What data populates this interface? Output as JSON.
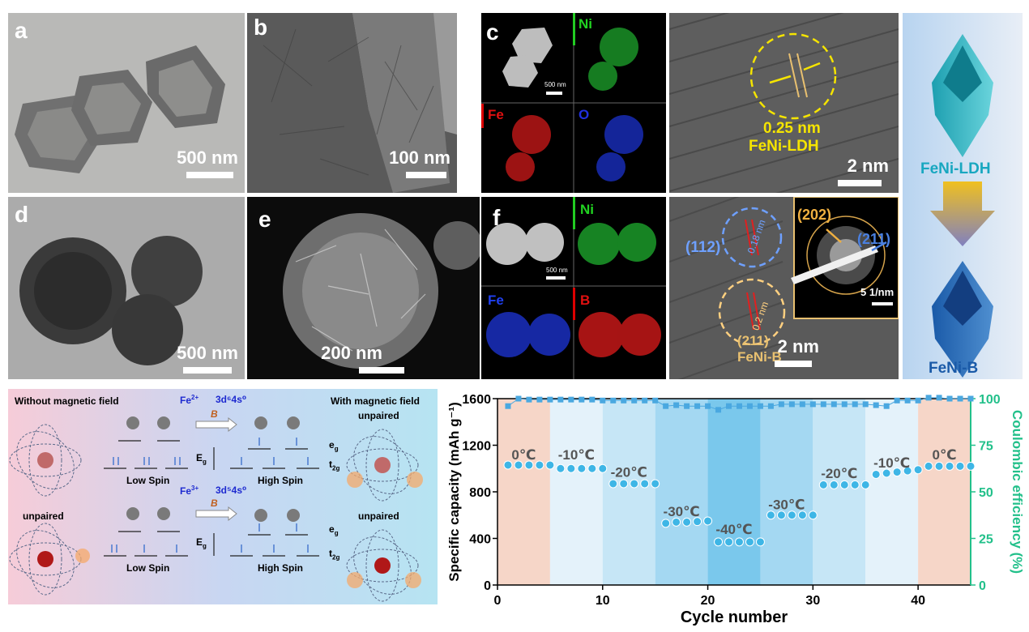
{
  "panels": {
    "a": {
      "label": "a",
      "scale": "500 nm"
    },
    "b": {
      "label": "b",
      "scale": "100 nm"
    },
    "c": {
      "label": "c",
      "scale": "500 nm",
      "maps": [
        "Ni",
        "Fe",
        "O"
      ]
    },
    "c_hrtem": {
      "spacing": "0.25 nm",
      "phase": "FeNi-LDH",
      "scale": "2 nm"
    },
    "d": {
      "label": "d",
      "scale": "500 nm"
    },
    "e": {
      "label": "e",
      "scale": "200 nm"
    },
    "f": {
      "label": "f",
      "scale": "500 nm",
      "maps": [
        "Ni",
        "Fe",
        "B"
      ]
    },
    "f_hrtem": {
      "plane1": "(112)",
      "spacing1": "0.18 nm",
      "spacing2": "0.2 nm",
      "plane2": "(211)",
      "phase": "FeNi-B",
      "scale": "2 nm",
      "saed": {
        "ring1": "(202)",
        "ring2": "(211)",
        "scale": "5 1/nm"
      }
    },
    "schematic": {
      "top": "FeNi-LDH",
      "bottom": "FeNi-B"
    }
  },
  "spin": {
    "without": "Without magnetic field",
    "with": "With magnetic field",
    "unpaired_top": "unpaired",
    "unpaired_left": "unpaired",
    "unpaired_right": "unpaired",
    "fe2": "Fe",
    "fe2_sup": "2+",
    "config2": "3d⁶4s⁰",
    "fe3": "Fe",
    "fe3_sup": "3+",
    "config3": "3d⁵4s⁰",
    "field": "B",
    "low_spin": "Low Spin",
    "high_spin": "High Spin",
    "eg": "e",
    "eg_sub": "g",
    "t2g": "t",
    "t2g_sub": "2g",
    "Eg": "E",
    "Eg_sub": "g"
  },
  "chart_data": {
    "type": "scatter",
    "xlabel": "Cycle number",
    "ylabel": "Specific capacity (mAh g⁻¹)",
    "y2label": "Coulombic efficiency (%)",
    "xlim": [
      0,
      45
    ],
    "ylim": [
      0,
      1600
    ],
    "y2lim": [
      0,
      100
    ],
    "xticks": [
      0,
      10,
      20,
      30,
      40
    ],
    "yticks": [
      0,
      400,
      800,
      1200,
      1600
    ],
    "y2ticks": [
      0,
      25,
      50,
      75,
      100
    ],
    "temperature_segments": [
      {
        "label": "0℃",
        "from": 0,
        "to": 5
      },
      {
        "label": "-10℃",
        "from": 5,
        "to": 10
      },
      {
        "label": "-20℃",
        "from": 10,
        "to": 15
      },
      {
        "label": "-30℃",
        "from": 15,
        "to": 20
      },
      {
        "label": "-40℃",
        "from": 20,
        "to": 25
      },
      {
        "label": "-30℃",
        "from": 25,
        "to": 30
      },
      {
        "label": "-20℃",
        "from": 30,
        "to": 35
      },
      {
        "label": "-10℃",
        "from": 35,
        "to": 40
      },
      {
        "label": "0℃",
        "from": 40,
        "to": 45
      }
    ],
    "series": [
      {
        "name": "Specific capacity",
        "axis": "left",
        "x": [
          1,
          2,
          3,
          4,
          5,
          6,
          7,
          8,
          9,
          10,
          11,
          12,
          13,
          14,
          15,
          16,
          17,
          18,
          19,
          20,
          21,
          22,
          23,
          24,
          25,
          26,
          27,
          28,
          29,
          30,
          31,
          32,
          33,
          34,
          35,
          36,
          37,
          38,
          39,
          40,
          41,
          42,
          43,
          44,
          45
        ],
        "y": [
          1030,
          1030,
          1030,
          1030,
          1030,
          1000,
          1000,
          1000,
          1000,
          1000,
          870,
          870,
          870,
          870,
          870,
          530,
          540,
          540,
          545,
          550,
          370,
          370,
          370,
          370,
          370,
          600,
          600,
          600,
          600,
          600,
          860,
          860,
          860,
          860,
          860,
          950,
          960,
          970,
          980,
          990,
          1020,
          1020,
          1020,
          1020,
          1020
        ]
      },
      {
        "name": "Coulombic efficiency",
        "axis": "right",
        "x": [
          1,
          2,
          3,
          4,
          5,
          6,
          7,
          8,
          9,
          10,
          11,
          12,
          13,
          14,
          15,
          16,
          17,
          18,
          19,
          20,
          21,
          22,
          23,
          24,
          25,
          26,
          27,
          28,
          29,
          30,
          31,
          32,
          33,
          34,
          35,
          36,
          37,
          38,
          39,
          40,
          41,
          42,
          43,
          44,
          45
        ],
        "y": [
          96,
          100,
          99.5,
          99.5,
          99.5,
          99.5,
          99.5,
          99.5,
          99.5,
          99,
          99,
          99,
          99,
          99,
          99,
          96,
          96.5,
          96,
          96,
          96,
          94,
          96,
          96,
          96,
          96,
          96,
          97,
          97,
          97,
          97,
          97,
          97,
          97,
          97,
          97,
          96.5,
          96,
          99,
          99,
          99,
          100.5,
          100.5,
          100,
          100,
          100
        ]
      }
    ]
  }
}
